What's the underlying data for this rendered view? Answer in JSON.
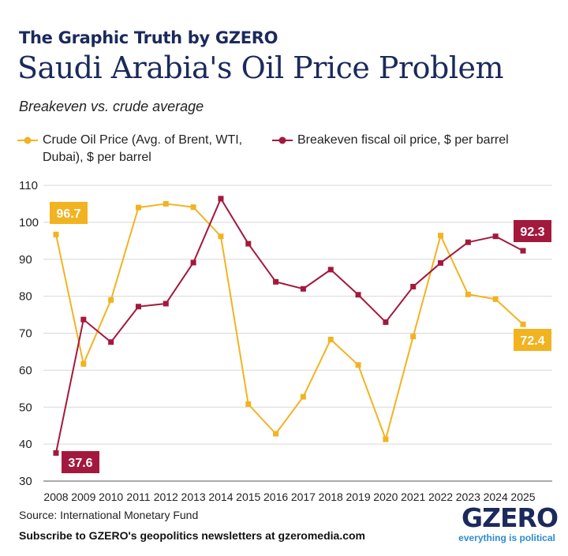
{
  "header": {
    "kicker": "The Graphic Truth by GZERO",
    "title": "Saudi Arabia's Oil Price Problem",
    "subtitle": "Breakeven vs. crude average"
  },
  "footer": {
    "source": "Source: International Monetary Fund",
    "subscribe": "Subscribe to GZERO's geopolitics newsletters at gzeromedia.com",
    "logo": "GZERO",
    "tagline": "everything is political"
  },
  "colors": {
    "crude": "#f2b321",
    "breakeven": "#a3193d",
    "grid": "#d8d8d8"
  },
  "chart_data": {
    "type": "line",
    "x": [
      "2008",
      "2009",
      "2010",
      "2011",
      "2012",
      "2013",
      "2014",
      "2015",
      "2016",
      "2017",
      "2018",
      "2019",
      "2020",
      "2021",
      "2022",
      "2023",
      "2024",
      "2025"
    ],
    "ylim": [
      30,
      110
    ],
    "yticks": [
      30,
      40,
      50,
      60,
      70,
      80,
      90,
      100,
      110
    ],
    "grid": true,
    "legend_position": "top",
    "series": [
      {
        "name": "Crude Oil Price (Avg. of Brent, WTI, Dubai), $ per barrel",
        "color_key": "crude",
        "values": [
          96.7,
          61.7,
          79.0,
          104.0,
          105.0,
          104.1,
          96.2,
          50.8,
          42.8,
          52.8,
          68.3,
          61.4,
          41.3,
          69.1,
          96.4,
          80.5,
          79.2,
          72.4
        ],
        "labels": [
          {
            "index": 0,
            "text": "96.7"
          },
          {
            "index": 17,
            "text": "72.4"
          }
        ]
      },
      {
        "name": "Breakeven fiscal oil price, $ per barrel",
        "color_key": "breakeven",
        "values": [
          37.6,
          73.7,
          67.6,
          77.2,
          78.0,
          89.1,
          106.4,
          94.2,
          83.9,
          82.0,
          87.2,
          80.4,
          73.0,
          82.6,
          89.0,
          94.6,
          96.2,
          92.3
        ],
        "labels": [
          {
            "index": 0,
            "text": "37.6"
          },
          {
            "index": 17,
            "text": "92.3"
          }
        ]
      }
    ]
  }
}
